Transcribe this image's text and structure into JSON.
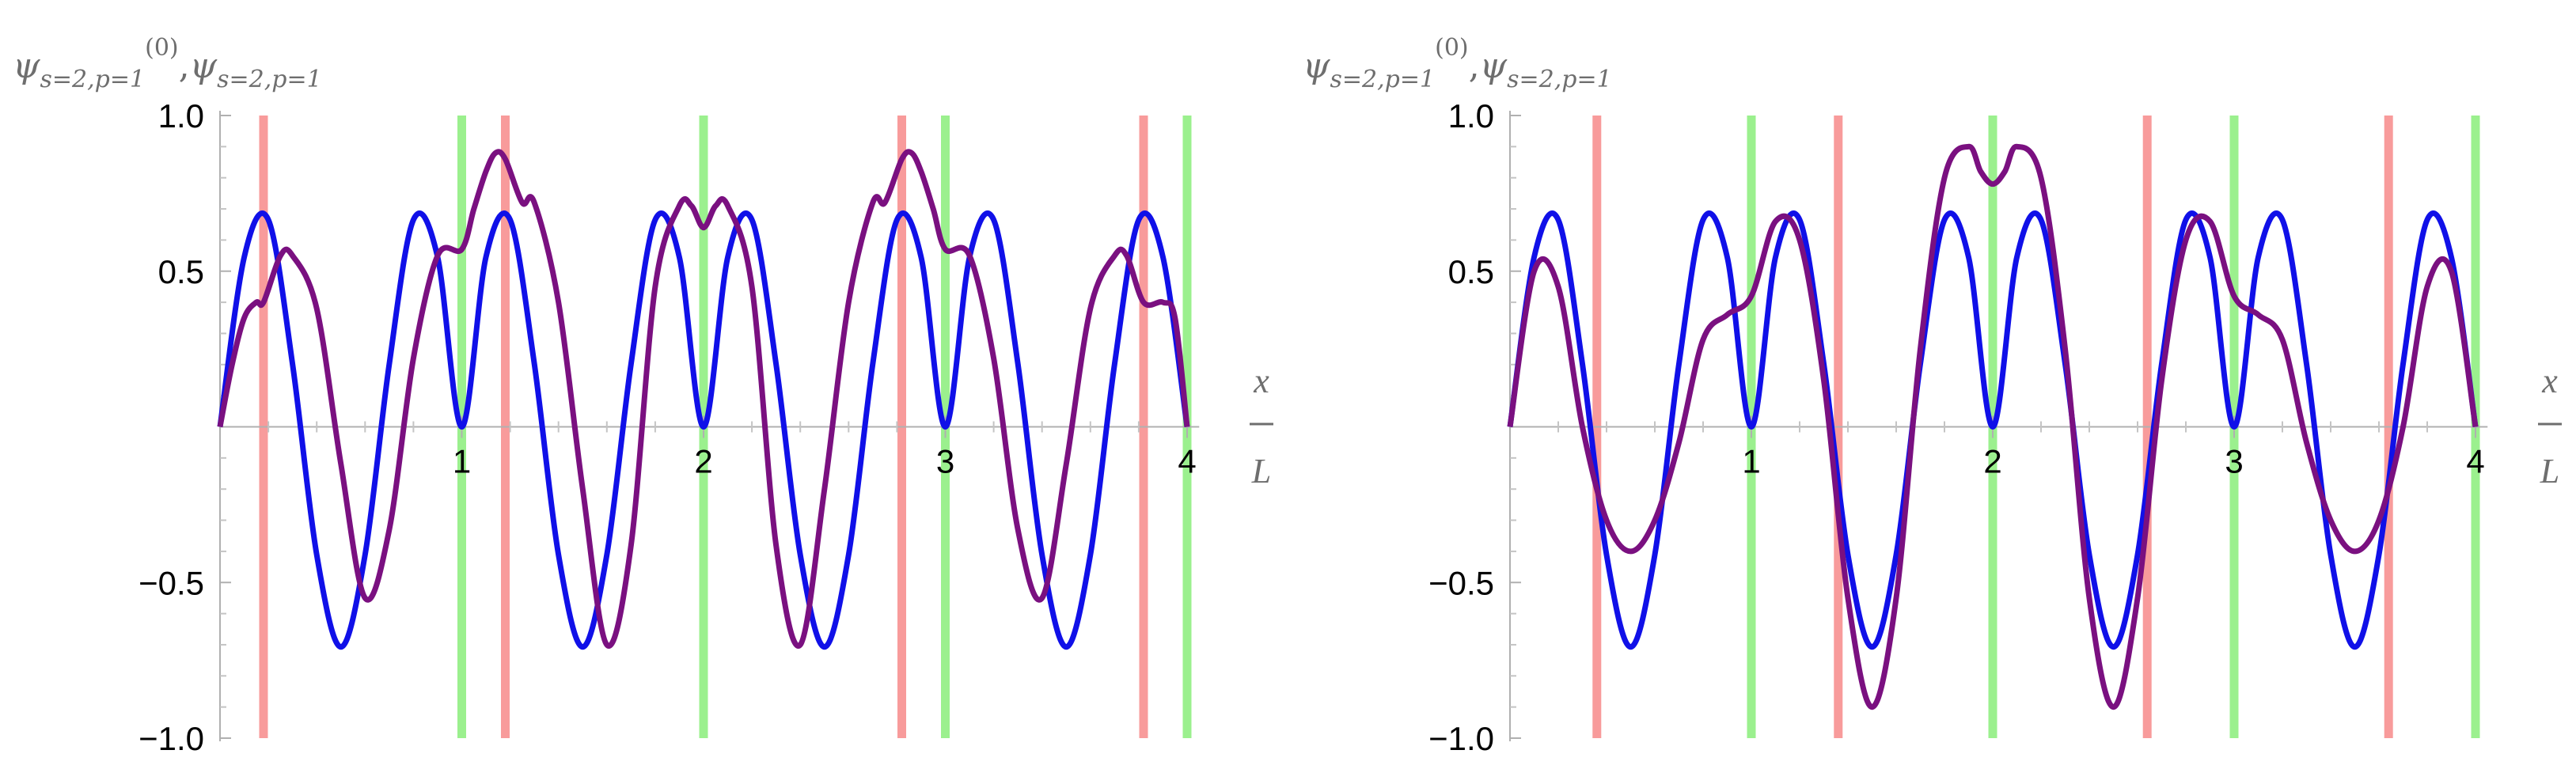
{
  "chart_data": [
    {
      "type": "line",
      "panel": "left",
      "ylabel": {
        "psi": "ψ",
        "sub1": "s=2,p=1",
        "sup1": "(0)",
        "sep": ",",
        "sub2": "s=2,p=1"
      },
      "xlabel": {
        "num": "x",
        "den": "L"
      },
      "xlim": [
        0,
        4.05
      ],
      "ylim": [
        -1.0,
        1.0
      ],
      "x_ticks": [
        1,
        2,
        3,
        4
      ],
      "x_tick_labels": [
        "1",
        "2",
        "3",
        "4"
      ],
      "x_minor_ticks": [
        0.2,
        0.4,
        0.6,
        0.8,
        1.2,
        1.4,
        1.6,
        1.8,
        2.2,
        2.4,
        2.6,
        2.8,
        3.2,
        3.4,
        3.6,
        3.8
      ],
      "y_ticks": [
        -1.0,
        -0.5,
        0.5,
        1.0
      ],
      "y_tick_labels": [
        "−1.0",
        "−0.5",
        "0.5",
        "1.0"
      ],
      "y_minor_ticks": [
        -0.9,
        -0.8,
        -0.7,
        -0.6,
        -0.4,
        -0.3,
        -0.2,
        -0.1,
        0.1,
        0.2,
        0.3,
        0.4,
        0.6,
        0.7,
        0.8,
        0.9
      ],
      "vlines": [
        {
          "x": 0.18,
          "color": "#f89b9b"
        },
        {
          "x": 1.0,
          "color": "#9bf08e"
        },
        {
          "x": 1.18,
          "color": "#f89b9b"
        },
        {
          "x": 2.0,
          "color": "#9bf08e"
        },
        {
          "x": 2.82,
          "color": "#f89b9b"
        },
        {
          "x": 3.0,
          "color": "#9bf08e"
        },
        {
          "x": 3.82,
          "color": "#f89b9b"
        },
        {
          "x": 4.0,
          "color": "#9bf08e"
        }
      ],
      "series": [
        {
          "color": "#1010e8",
          "x": [
            0,
            0.1,
            0.2,
            0.3,
            0.4,
            0.5,
            0.6,
            0.7,
            0.8,
            0.9,
            1.0,
            1.1,
            1.2,
            1.3,
            1.4,
            1.5,
            1.6,
            1.7,
            1.8,
            1.9,
            2.0,
            2.1,
            2.2,
            2.3,
            2.4,
            2.5,
            2.6,
            2.7,
            2.8,
            2.9,
            3.0,
            3.1,
            3.2,
            3.3,
            3.4,
            3.5,
            3.6,
            3.7,
            3.8,
            3.9,
            4.0
          ],
          "y": [
            0.0,
            0.545,
            0.665,
            0.202,
            -0.411,
            -0.707,
            -0.411,
            0.202,
            0.665,
            0.545,
            0.0,
            0.545,
            0.665,
            0.202,
            -0.411,
            -0.707,
            -0.411,
            0.202,
            0.665,
            0.545,
            0.0,
            0.545,
            0.665,
            0.202,
            -0.411,
            -0.707,
            -0.411,
            0.202,
            0.665,
            0.545,
            0.0,
            0.545,
            0.665,
            0.202,
            -0.411,
            -0.707,
            -0.411,
            0.202,
            0.665,
            0.545,
            0.0
          ]
        },
        {
          "color": "#7a1080",
          "x": [
            0,
            0.05,
            0.1,
            0.15,
            0.18,
            0.25,
            0.3,
            0.4,
            0.5,
            0.6,
            0.7,
            0.8,
            0.9,
            1.0,
            1.05,
            1.1,
            1.14,
            1.18,
            1.25,
            1.3,
            1.4,
            1.5,
            1.6,
            1.7,
            1.8,
            1.9,
            1.95,
            2.0,
            2.05,
            2.1,
            2.2,
            2.3,
            2.4,
            2.5,
            2.6,
            2.7,
            2.75,
            2.82,
            2.86,
            2.9,
            2.95,
            3.0,
            3.1,
            3.2,
            3.3,
            3.4,
            3.5,
            3.6,
            3.7,
            3.75,
            3.82,
            3.9,
            3.95,
            4.0
          ],
          "y": [
            0.0,
            0.2,
            0.35,
            0.4,
            0.4,
            0.55,
            0.55,
            0.38,
            -0.12,
            -0.55,
            -0.33,
            0.22,
            0.55,
            0.57,
            0.7,
            0.82,
            0.88,
            0.86,
            0.72,
            0.72,
            0.4,
            -0.2,
            -0.7,
            -0.38,
            0.45,
            0.71,
            0.71,
            0.64,
            0.71,
            0.71,
            0.45,
            -0.38,
            -0.7,
            -0.2,
            0.4,
            0.72,
            0.72,
            0.86,
            0.88,
            0.82,
            0.7,
            0.57,
            0.55,
            0.22,
            -0.33,
            -0.55,
            -0.12,
            0.38,
            0.55,
            0.55,
            0.4,
            0.4,
            0.35,
            0.0
          ]
        }
      ]
    },
    {
      "type": "line",
      "panel": "right",
      "ylabel": {
        "psi": "ψ",
        "sub1": "s=2,p=1",
        "sup1": "(0)",
        "sep": ",",
        "sub2": "s=2,p=1"
      },
      "xlabel": {
        "num": "x",
        "den": "L"
      },
      "xlim": [
        0,
        4.05
      ],
      "ylim": [
        -1.0,
        1.0
      ],
      "x_ticks": [
        1,
        2,
        3,
        4
      ],
      "x_tick_labels": [
        "1",
        "2",
        "3",
        "4"
      ],
      "x_minor_ticks": [
        0.2,
        0.4,
        0.6,
        0.8,
        1.2,
        1.4,
        1.6,
        1.8,
        2.2,
        2.4,
        2.6,
        2.8,
        3.2,
        3.4,
        3.6,
        3.8
      ],
      "y_ticks": [
        -1.0,
        -0.5,
        0.5,
        1.0
      ],
      "y_tick_labels": [
        "−1.0",
        "−0.5",
        "0.5",
        "1.0"
      ],
      "y_minor_ticks": [
        -0.9,
        -0.8,
        -0.7,
        -0.6,
        -0.4,
        -0.3,
        -0.2,
        -0.1,
        0.1,
        0.2,
        0.3,
        0.4,
        0.6,
        0.7,
        0.8,
        0.9
      ],
      "vlines": [
        {
          "x": 0.36,
          "color": "#f89b9b"
        },
        {
          "x": 1.0,
          "color": "#9bf08e"
        },
        {
          "x": 1.36,
          "color": "#f89b9b"
        },
        {
          "x": 2.0,
          "color": "#9bf08e"
        },
        {
          "x": 2.64,
          "color": "#f89b9b"
        },
        {
          "x": 3.0,
          "color": "#9bf08e"
        },
        {
          "x": 3.64,
          "color": "#f89b9b"
        },
        {
          "x": 4.0,
          "color": "#9bf08e"
        }
      ],
      "series": [
        {
          "color": "#1010e8",
          "x": [
            0,
            0.1,
            0.2,
            0.3,
            0.4,
            0.5,
            0.6,
            0.7,
            0.8,
            0.9,
            1.0,
            1.1,
            1.2,
            1.3,
            1.4,
            1.5,
            1.6,
            1.7,
            1.8,
            1.9,
            2.0,
            2.1,
            2.2,
            2.3,
            2.4,
            2.5,
            2.6,
            2.7,
            2.8,
            2.9,
            3.0,
            3.1,
            3.2,
            3.3,
            3.4,
            3.5,
            3.6,
            3.7,
            3.8,
            3.9,
            4.0
          ],
          "y": [
            0.0,
            0.545,
            0.665,
            0.202,
            -0.411,
            -0.707,
            -0.411,
            0.202,
            0.665,
            0.545,
            0.0,
            0.545,
            0.665,
            0.202,
            -0.411,
            -0.707,
            -0.411,
            0.202,
            0.665,
            0.545,
            0.0,
            0.545,
            0.665,
            0.202,
            -0.411,
            -0.707,
            -0.411,
            0.202,
            0.665,
            0.545,
            0.0,
            0.545,
            0.665,
            0.202,
            -0.411,
            -0.707,
            -0.411,
            0.202,
            0.665,
            0.545,
            0.0
          ]
        },
        {
          "color": "#7a1080",
          "x": [
            0,
            0.1,
            0.2,
            0.3,
            0.4,
            0.5,
            0.6,
            0.7,
            0.8,
            0.9,
            1.0,
            1.1,
            1.2,
            1.3,
            1.4,
            1.5,
            1.6,
            1.7,
            1.8,
            1.9,
            1.95,
            2.0,
            2.05,
            2.1,
            2.2,
            2.3,
            2.4,
            2.5,
            2.6,
            2.7,
            2.8,
            2.9,
            3.0,
            3.1,
            3.2,
            3.3,
            3.4,
            3.5,
            3.6,
            3.7,
            3.8,
            3.9,
            4.0
          ],
          "y": [
            0.0,
            0.5,
            0.45,
            0.0,
            -0.3,
            -0.4,
            -0.3,
            -0.05,
            0.28,
            0.36,
            0.42,
            0.66,
            0.6,
            0.15,
            -0.55,
            -0.9,
            -0.55,
            0.25,
            0.8,
            0.9,
            0.82,
            0.78,
            0.82,
            0.9,
            0.8,
            0.25,
            -0.55,
            -0.9,
            -0.55,
            0.15,
            0.6,
            0.66,
            0.42,
            0.36,
            0.28,
            -0.05,
            -0.3,
            -0.4,
            -0.3,
            0.0,
            0.45,
            0.5,
            0.0
          ]
        }
      ]
    }
  ]
}
